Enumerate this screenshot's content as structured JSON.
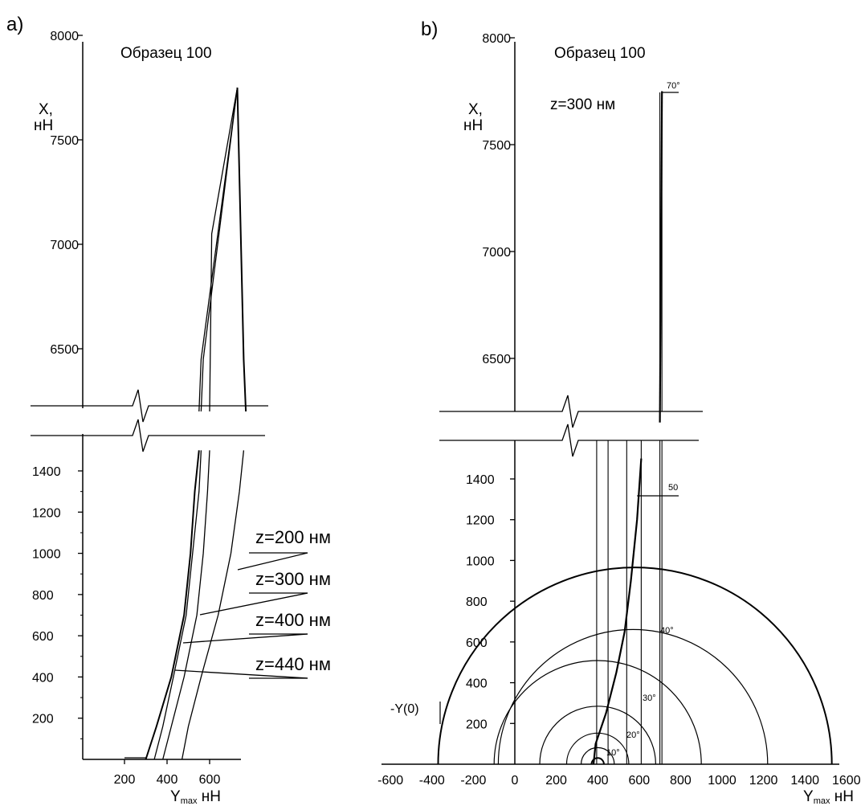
{
  "chart_data": [
    {
      "panel_label": "a)",
      "type": "line",
      "title": "Образец 100",
      "ylabel": [
        "X,",
        "нН"
      ],
      "xlabel": {
        "sym": "Y",
        "sub": "max",
        "unit": " нН"
      },
      "x_ticks": [
        "200",
        "400",
        "600"
      ],
      "y_ticks_upper": [
        "8000",
        "7500",
        "7000",
        "6500"
      ],
      "y_ticks_lower": [
        "1400",
        "1200",
        "1000",
        "800",
        "600",
        "400",
        "200"
      ],
      "series": [
        {
          "name": "z=200 нм",
          "lower": [
            [
              470,
              0
            ],
            [
              500,
              160
            ],
            [
              560,
              400
            ],
            [
              640,
              700
            ],
            [
              700,
              1000
            ],
            [
              740,
              1300
            ],
            [
              760,
              1500
            ]
          ],
          "upper": [
            [
              770,
              6200
            ],
            [
              760,
              6450
            ],
            [
              730,
              7750
            ]
          ]
        },
        {
          "name": "z=300 нм",
          "lower": [
            [
              380,
              0
            ],
            [
              420,
              160
            ],
            [
              480,
              400
            ],
            [
              540,
              700
            ],
            [
              570,
              1000
            ],
            [
              590,
              1300
            ],
            [
              600,
              1500
            ]
          ],
          "upper": [
            [
              600,
              6200
            ],
            [
              610,
              7050
            ],
            [
              730,
              7750
            ]
          ]
        },
        {
          "name": "z=400 нм",
          "lower": [
            [
              340,
              0
            ],
            [
              380,
              160
            ],
            [
              430,
              400
            ],
            [
              490,
              700
            ],
            [
              520,
              1000
            ],
            [
              550,
              1300
            ],
            [
              560,
              1500
            ]
          ],
          "upper": [
            [
              560,
              6200
            ],
            [
              570,
              6450
            ],
            [
              730,
              7750
            ]
          ]
        },
        {
          "name": "z=440 нм",
          "lower": [
            [
              300,
              0
            ],
            [
              350,
              160
            ],
            [
              420,
              400
            ],
            [
              480,
              700
            ],
            [
              510,
              1000
            ],
            [
              530,
              1300
            ],
            [
              550,
              1500
            ]
          ],
          "upper": [
            [
              550,
              6200
            ],
            [
              560,
              6450
            ],
            [
              730,
              7750
            ]
          ]
        }
      ],
      "labels": [
        "z=200 нм",
        "z=300 нм",
        "z=400 нм",
        "z=440 нм"
      ]
    },
    {
      "panel_label": "b)",
      "type": "line",
      "title": "Образец 100",
      "subtitle": "z=300 нм",
      "ylabel": [
        "X,",
        "нН"
      ],
      "xlabel": {
        "sym": "Y",
        "sub": "max",
        "unit": " нН"
      },
      "x_ticks": [
        "-600",
        "-400",
        "-200",
        "0",
        "200",
        "400",
        "600",
        "800",
        "1000",
        "1200",
        "1400",
        "1600"
      ],
      "y_ticks_upper": [
        "8000",
        "7500",
        "7000",
        "6500"
      ],
      "y_ticks_lower": [
        "1400",
        "1200",
        "1000",
        "800",
        "600",
        "400",
        "200"
      ],
      "curve_lower": [
        [
          380,
          0
        ],
        [
          390,
          100
        ],
        [
          440,
          250
        ],
        [
          490,
          450
        ],
        [
          530,
          650
        ],
        [
          560,
          900
        ],
        [
          590,
          1200
        ],
        [
          610,
          1500
        ]
      ],
      "curve_upper": [
        [
          700,
          6200
        ],
        [
          710,
          7750
        ]
      ],
      "circles": [
        {
          "center": 400,
          "radius": 30
        },
        {
          "center": 400,
          "radius": 80
        },
        {
          "center": 400,
          "radius": 150
        },
        {
          "center": 400,
          "radius": 280
        },
        {
          "center": 400,
          "radius": 500
        },
        {
          "center": 570,
          "radius": 650
        },
        {
          "center": 580,
          "radius": 950
        }
      ],
      "verticals": [
        395,
        450,
        540,
        610,
        700,
        710
      ],
      "angle_labels": [
        "10°",
        "20°",
        "30°",
        "40°",
        "50",
        "70°"
      ],
      "y0_label": "-Y(0)"
    }
  ]
}
